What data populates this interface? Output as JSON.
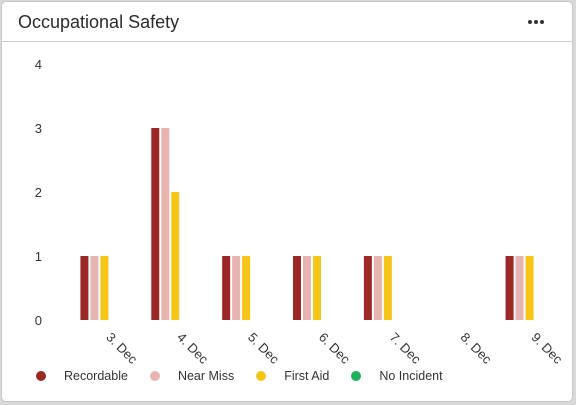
{
  "header": {
    "title": "Occupational Safety",
    "menu_icon": "more-horizontal-icon"
  },
  "chart_data": {
    "type": "bar",
    "title": "Occupational Safety",
    "xlabel": "",
    "ylabel": "",
    "ylim": [
      0,
      4
    ],
    "yticks": [
      "0",
      "1",
      "2",
      "3",
      "4"
    ],
    "grid": false,
    "legend_position": "bottom",
    "categories": [
      "3. Dec",
      "4. Dec",
      "5. Dec",
      "6. Dec",
      "7. Dec",
      "8. Dec",
      "9. Dec"
    ],
    "series": [
      {
        "name": "Recordable",
        "color": "#9b2727",
        "values": [
          1,
          3,
          1,
          1,
          1,
          0,
          1
        ]
      },
      {
        "name": "Near Miss",
        "color": "#e8b4b1",
        "values": [
          1,
          3,
          1,
          1,
          1,
          0,
          1
        ]
      },
      {
        "name": "First Aid",
        "color": "#f5c518",
        "values": [
          1,
          2,
          1,
          1,
          1,
          0,
          1
        ]
      },
      {
        "name": "No Incident",
        "color": "#1db35a",
        "values": [
          0,
          0,
          0,
          0,
          0,
          0,
          0
        ]
      }
    ]
  }
}
